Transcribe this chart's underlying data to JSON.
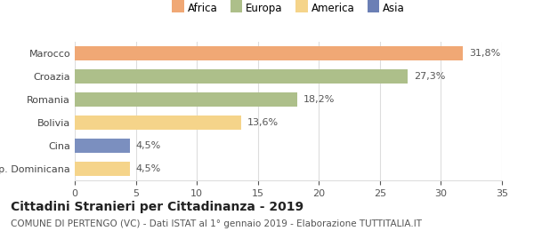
{
  "categories": [
    "Marocco",
    "Croazia",
    "Romania",
    "Bolivia",
    "Cina",
    "Rep. Dominicana"
  ],
  "values": [
    31.8,
    27.3,
    18.2,
    13.6,
    4.5,
    4.5
  ],
  "labels": [
    "31,8%",
    "27,3%",
    "18,2%",
    "13,6%",
    "4,5%",
    "4,5%"
  ],
  "colors": [
    "#F0A875",
    "#ADBF8A",
    "#ADBF8A",
    "#F5D48A",
    "#7B8FBF",
    "#F5D48A"
  ],
  "legend": [
    {
      "label": "Africa",
      "color": "#F0A875"
    },
    {
      "label": "Europa",
      "color": "#ADBF8A"
    },
    {
      "label": "America",
      "color": "#F5D48A"
    },
    {
      "label": "Asia",
      "color": "#6B7FB5"
    }
  ],
  "xlim": [
    0,
    35
  ],
  "xticks": [
    0,
    5,
    10,
    15,
    20,
    25,
    30,
    35
  ],
  "title": "Cittadini Stranieri per Cittadinanza - 2019",
  "subtitle": "COMUNE DI PERTENGO (VC) - Dati ISTAT al 1° gennaio 2019 - Elaborazione TUTTITALIA.IT",
  "background_color": "#ffffff",
  "grid_color": "#dddddd",
  "bar_height": 0.62,
  "title_fontsize": 10,
  "subtitle_fontsize": 7.5,
  "label_fontsize": 8,
  "tick_fontsize": 8,
  "legend_fontsize": 8.5
}
